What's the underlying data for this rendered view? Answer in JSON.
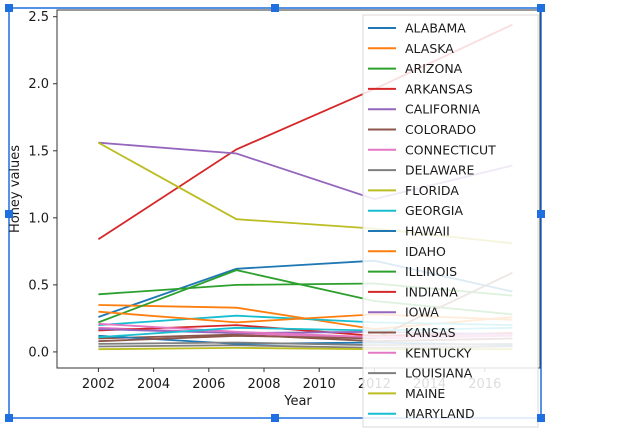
{
  "ui": {
    "selection_color": "#1e6fe0"
  },
  "chart_data": {
    "type": "line",
    "xlabel": "Year",
    "ylabel": "Honey values",
    "xlim": [
      2000.5,
      2018.0
    ],
    "ylim": [
      -0.12,
      2.55
    ],
    "x_ticks": [
      2002,
      2004,
      2006,
      2008,
      2010,
      2012,
      2014,
      2016
    ],
    "y_ticks": [
      0.0,
      0.5,
      1.0,
      1.5,
      2.0,
      2.5
    ],
    "x": [
      2002,
      2007,
      2012,
      2017
    ],
    "grid": false,
    "legend_placement": "right",
    "series": [
      {
        "name": "ALABAMA",
        "color": "#1f77b4",
        "values": [
          0.26,
          0.62,
          0.68,
          0.45
        ]
      },
      {
        "name": "ALASKA",
        "color": "#ff7f0e",
        "values": [
          0.35,
          0.33,
          0.17,
          0.26
        ]
      },
      {
        "name": "ARIZONA",
        "color": "#2ca02c",
        "values": [
          0.22,
          0.61,
          0.38,
          0.28
        ]
      },
      {
        "name": "ARKANSAS",
        "color": "#d62728",
        "values": [
          0.84,
          1.51,
          1.96,
          2.44
        ]
      },
      {
        "name": "CALIFORNIA",
        "color": "#9467bd",
        "values": [
          1.56,
          1.48,
          1.14,
          1.39
        ]
      },
      {
        "name": "COLORADO",
        "color": "#8c564b",
        "values": [
          0.1,
          0.13,
          0.08,
          0.1
        ]
      },
      {
        "name": "CONNECTICUT",
        "color": "#e377c2",
        "values": [
          0.18,
          0.14,
          0.1,
          0.12
        ]
      },
      {
        "name": "DELAWARE",
        "color": "#7f7f7f",
        "values": [
          0.04,
          0.05,
          0.03,
          0.04
        ]
      },
      {
        "name": "FLORIDA",
        "color": "#bcbd22",
        "values": [
          1.56,
          0.99,
          0.92,
          0.81
        ]
      },
      {
        "name": "GEORGIA",
        "color": "#17becf",
        "values": [
          0.2,
          0.27,
          0.22,
          0.2
        ]
      },
      {
        "name": "HAWAII",
        "color": "#1f77b4",
        "values": [
          0.12,
          0.06,
          0.07,
          0.05
        ]
      },
      {
        "name": "IDAHO",
        "color": "#ff7f0e",
        "values": [
          0.3,
          0.22,
          0.28,
          0.24
        ]
      },
      {
        "name": "ILLINOIS",
        "color": "#2ca02c",
        "values": [
          0.43,
          0.5,
          0.51,
          0.42
        ]
      },
      {
        "name": "INDIANA",
        "color": "#d62728",
        "values": [
          0.16,
          0.2,
          0.12,
          0.14
        ]
      },
      {
        "name": "IOWA",
        "color": "#9467bd",
        "values": [
          0.17,
          0.14,
          0.15,
          0.13
        ]
      },
      {
        "name": "KANSAS",
        "color": "#8c564b",
        "values": [
          0.08,
          0.12,
          0.1,
          0.59
        ]
      },
      {
        "name": "KENTUCKY",
        "color": "#e377c2",
        "values": [
          0.21,
          0.15,
          0.11,
          0.13
        ]
      },
      {
        "name": "LOUISIANA",
        "color": "#7f7f7f",
        "values": [
          0.06,
          0.07,
          0.05,
          0.06
        ]
      },
      {
        "name": "MAINE",
        "color": "#bcbd22",
        "values": [
          0.02,
          0.03,
          0.02,
          0.02
        ]
      },
      {
        "name": "MARYLAND",
        "color": "#17becf",
        "values": [
          0.11,
          0.18,
          0.16,
          0.18
        ]
      }
    ]
  }
}
